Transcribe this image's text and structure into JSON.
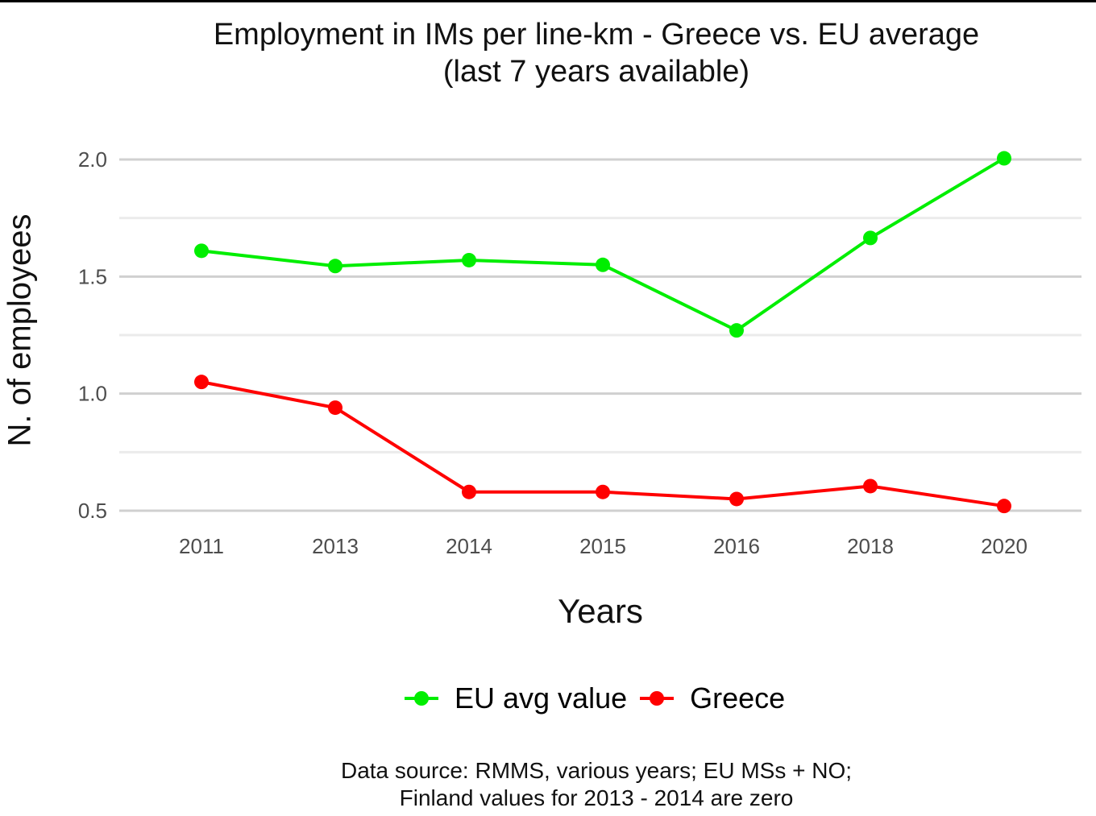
{
  "chart_data": {
    "type": "line",
    "title": "Employment in IMs per line-km - Greece vs. EU average",
    "subtitle": "(last 7 years available)",
    "xlabel": "Years",
    "ylabel": "N. of employees",
    "categories": [
      "2011",
      "2013",
      "2014",
      "2015",
      "2016",
      "2018",
      "2020"
    ],
    "series": [
      {
        "name": "EU avg value",
        "color": "#00ee00",
        "values": [
          1.61,
          1.545,
          1.57,
          1.55,
          1.27,
          1.665,
          2.005
        ]
      },
      {
        "name": "Greece",
        "color": "#ff0000",
        "values": [
          1.05,
          0.94,
          0.58,
          0.58,
          0.55,
          0.605,
          0.52
        ]
      }
    ],
    "yticks": [
      "0.5",
      "1.0",
      "1.5",
      "2.0"
    ],
    "ylim": [
      0.5,
      2.0
    ],
    "grid": true,
    "legend_position": "bottom",
    "caption_lines": [
      "Data source: RMMS, various years; EU MSs + NO;",
      "Finland values for 2013 - 2014 are zero"
    ]
  }
}
